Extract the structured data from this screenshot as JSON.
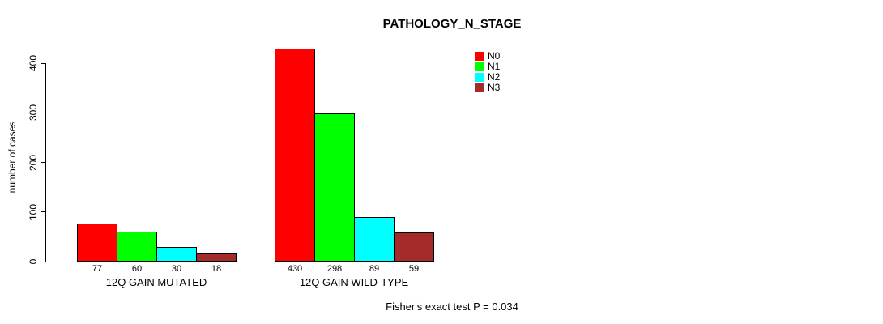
{
  "chart_data": {
    "type": "bar",
    "title": "PATHOLOGY_N_STAGE",
    "xlabel": "",
    "ylabel": "number of cases",
    "ylim": [
      0,
      430
    ],
    "yticks": [
      0,
      100,
      200,
      300,
      400
    ],
    "grid": false,
    "legend_position": "top-right",
    "groups": [
      "12Q GAIN MUTATED",
      "12Q GAIN WILD-TYPE"
    ],
    "series": [
      {
        "name": "N0",
        "color": "#FF0000",
        "values": [
          77,
          430
        ]
      },
      {
        "name": "N1",
        "color": "#00FF00",
        "values": [
          60,
          298
        ]
      },
      {
        "name": "N2",
        "color": "#00FFFF",
        "values": [
          30,
          89
        ]
      },
      {
        "name": "N3",
        "color": "#A52A2A",
        "values": [
          18,
          59
        ]
      }
    ],
    "bar_value_labels": [
      [
        77,
        60,
        30,
        18
      ],
      [
        430,
        298,
        89,
        59
      ]
    ],
    "annotation": "Fisher's exact test P = 0.034"
  }
}
